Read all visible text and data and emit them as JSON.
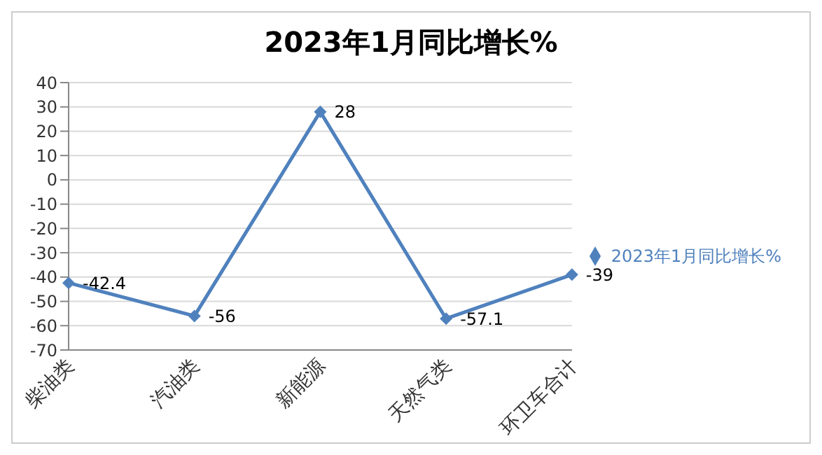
{
  "chart_data": {
    "type": "line",
    "title": "2023年1月同比增长%",
    "categories": [
      "柴油类",
      "汽油类",
      "新能源",
      "天然气类",
      "环卫车合计"
    ],
    "series": [
      {
        "name": "2023年1月同比增长%",
        "color": "#4f81bd",
        "values": [
          -42.4,
          -56,
          28,
          -57.1,
          -39
        ]
      }
    ],
    "ylim": [
      -70,
      40
    ],
    "yticks": [
      -70,
      -60,
      -50,
      -40,
      -30,
      -20,
      -10,
      0,
      10,
      20,
      30,
      40
    ],
    "grid": "y",
    "legend": "right",
    "marker": "diamond",
    "data_labels": true
  }
}
